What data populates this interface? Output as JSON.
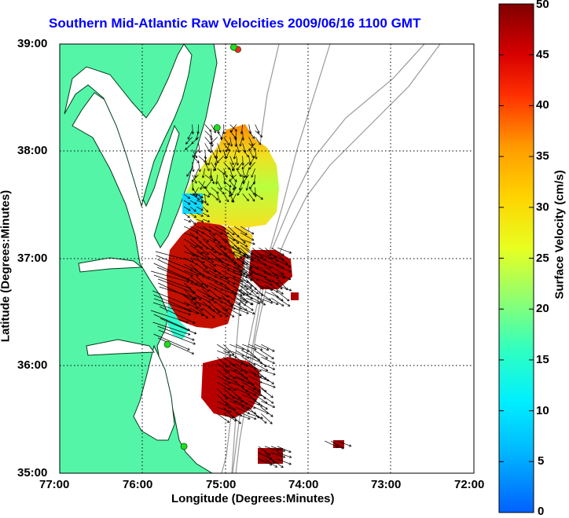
{
  "title": "Southern Mid-Atlantic Raw Velocities 2009/06/16 1100 GMT",
  "axes": {
    "xlabel": "Longitude (Degrees:Minutes)",
    "ylabel": "Latitude (Degrees:Minutes)",
    "x_ticks": [
      "77:00",
      "76:00",
      "75:00",
      "74:00",
      "73:00",
      "72:00"
    ],
    "y_ticks": [
      "39:00",
      "38:00",
      "37:00",
      "36:00",
      "35:00"
    ]
  },
  "colorbar": {
    "label": "Surface Velocity (cm/s)",
    "ticks": [
      "50",
      "45",
      "40",
      "35",
      "30",
      "25",
      "20",
      "15",
      "10",
      "5",
      "0"
    ],
    "range": [
      0,
      50
    ]
  },
  "colors": {
    "land": "#55f5a8",
    "coast": "#003b1a",
    "title": "#0000ff",
    "bathymetry": "#999999",
    "station": "#22dd22",
    "station_alt": "#ff2222"
  },
  "chart_data": {
    "type": "heatmap",
    "title": "Southern Mid-Atlantic Raw Velocities 2009/06/16 1100 GMT",
    "xlabel": "Longitude (Degrees:Minutes)",
    "ylabel": "Latitude (Degrees:Minutes)",
    "xlim": [
      -77,
      -72
    ],
    "ylim": [
      35,
      39
    ],
    "value_range": [
      0,
      50
    ],
    "units": "cm/s",
    "grid": true,
    "regions": [
      {
        "lon": [
          -75.4,
          -74.6
        ],
        "lat": [
          37.55,
          38.25
        ],
        "speed": 22
      },
      {
        "lon": [
          -75.5,
          -75.2
        ],
        "lat": [
          37.35,
          37.6
        ],
        "speed": 12
      },
      {
        "lon": [
          -75.5,
          -74.8
        ],
        "lat": [
          36.5,
          37.3
        ],
        "speed": 48
      },
      {
        "lon": [
          -74.9,
          -74.3
        ],
        "lat": [
          36.6,
          37.1
        ],
        "speed": 45
      },
      {
        "lon": [
          -75.1,
          -74.5
        ],
        "lat": [
          35.55,
          36.2
        ],
        "speed": 47
      },
      {
        "lon": [
          -74.6,
          -74.3
        ],
        "lat": [
          35.08,
          35.25
        ],
        "speed": 46
      },
      {
        "lon": [
          -73.8,
          -73.6
        ],
        "lat": [
          35.25,
          35.3
        ],
        "speed": 46
      }
    ],
    "stations": [
      {
        "lon": -74.85,
        "lat": 38.95,
        "status": "red"
      },
      {
        "lon": -74.9,
        "lat": 38.97,
        "status": "green"
      },
      {
        "lon": -75.1,
        "lat": 38.22,
        "status": "green"
      },
      {
        "lon": -75.7,
        "lat": 36.2,
        "status": "green"
      },
      {
        "lon": -75.5,
        "lat": 35.25,
        "status": "green"
      }
    ]
  }
}
